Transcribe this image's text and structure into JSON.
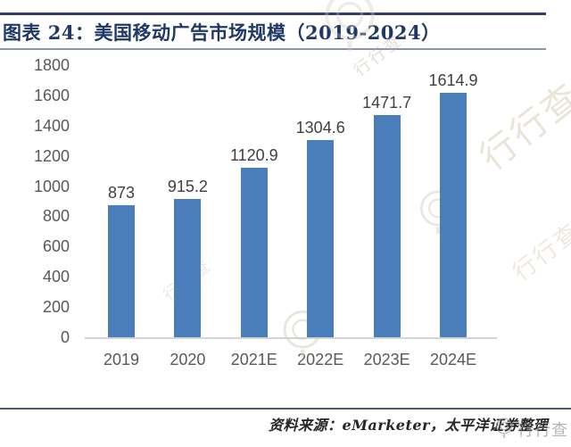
{
  "header": {
    "title": "图表 24：美国移动广告市场规模（2019-2024）"
  },
  "chart_data": {
    "type": "bar",
    "title": "美国移动广告市场规模（2019-2024）",
    "categories": [
      "2019",
      "2020",
      "2021E",
      "2022E",
      "2023E",
      "2024E"
    ],
    "values": [
      873,
      915.2,
      1120.9,
      1304.6,
      1471.7,
      1614.9
    ],
    "value_labels": [
      "873",
      "915.2",
      "1120.9",
      "1304.6",
      "1471.7",
      "1614.9"
    ],
    "ylim": [
      0,
      1800
    ],
    "yticks": [
      1800,
      1600,
      1400,
      1200,
      1000,
      800,
      600,
      400,
      200,
      0
    ],
    "grid": false,
    "legend_position": "none",
    "bar_color": "#4A7EBB",
    "value_label_color": "#3F3F3F",
    "axis_label_color": "#595959"
  },
  "footer": {
    "source": "资料来源：eMarketer，太平洋证券整理"
  },
  "watermark": {
    "text": "行行查",
    "logo_icon": "magnifier-circle-logo"
  },
  "colors": {
    "title": "#1F3864",
    "rule_top": "#2F3E6E",
    "rule_under_title": "#8A93B5",
    "rule_footer": "#47568C",
    "axis_line": "#D4D4D4"
  }
}
